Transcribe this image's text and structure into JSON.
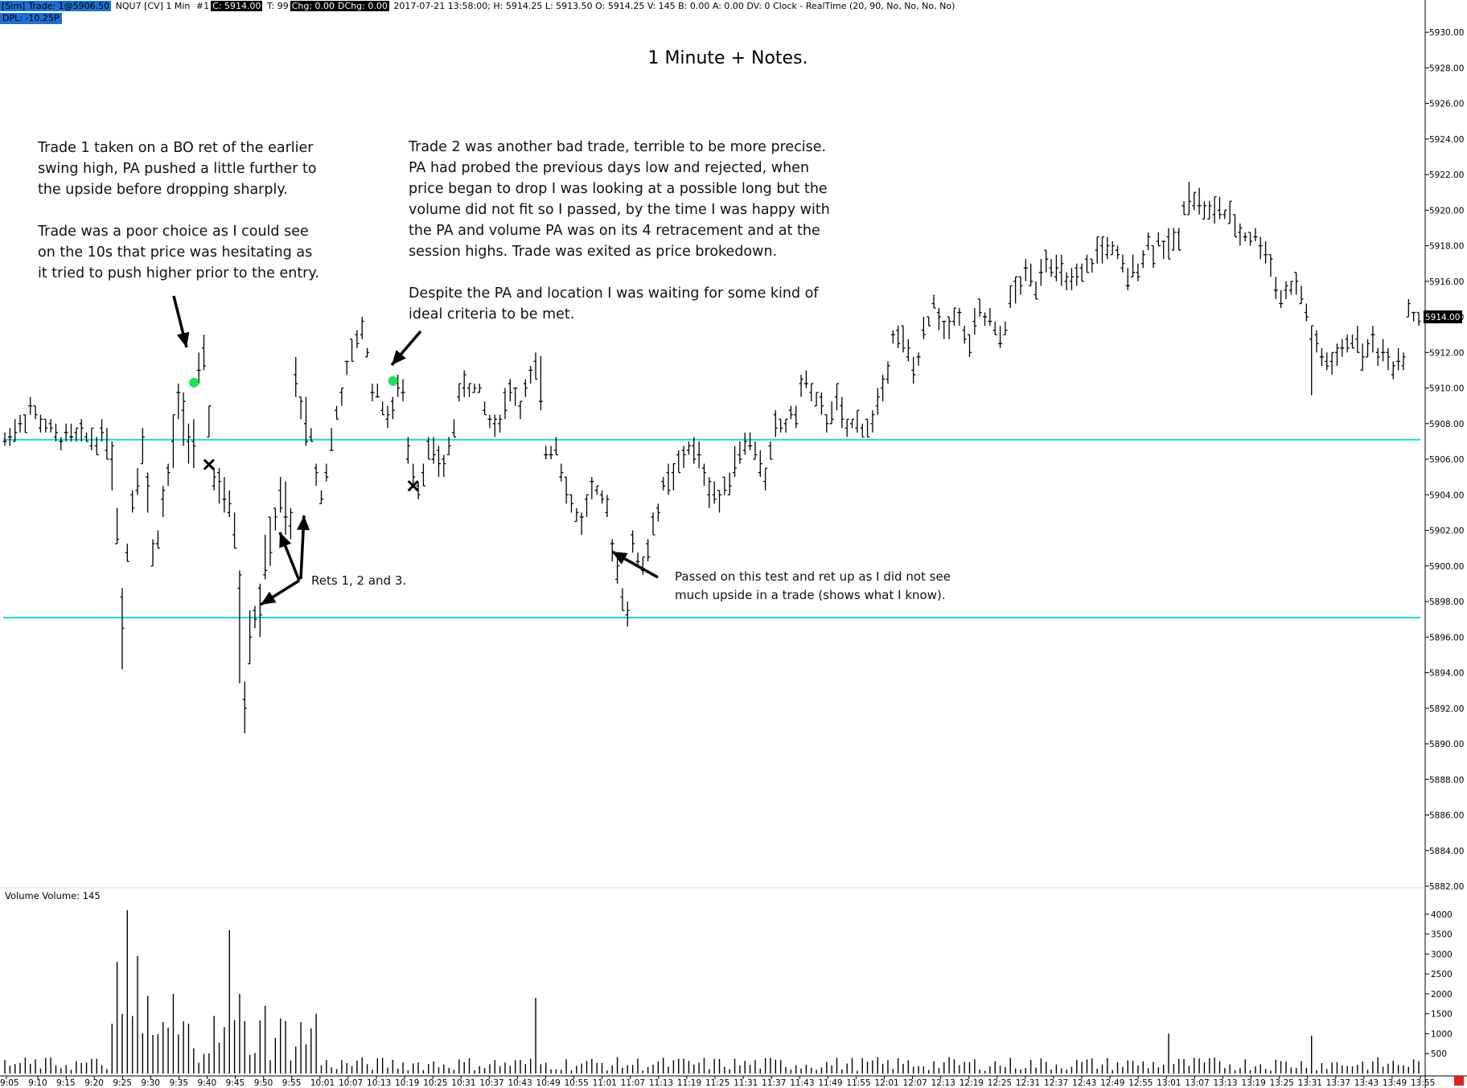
{
  "header": {
    "sim": "[Sim]",
    "trade": "Trade: 1@5906.50",
    "instrument": "NQU7 [CV]  1 Min",
    "num": "#1",
    "close": "C: 5914.00",
    "ticks": "T: 99",
    "chg": "Chg: 0.00",
    "dchg": "DChg: 0.00",
    "bar_info": "2017-07-21 13:58:00; H: 5914.25 L: 5913.50  O: 5914.25 V: 145 B: 0.00 A: 0.00 DV: 0 Clock - RealTime   (20, 90, No, No, No, No)",
    "dpl": "DPL: -10.25P"
  },
  "notes": {
    "trade1": "Trade 1 taken on a BO ret of the earlier\nswing high, PA pushed a little further to\nthe upside before dropping sharply.\n\nTrade was a poor choice as I could see\non the 10s that price was hesitating as\nit tried to push higher prior to the entry.",
    "trade2": "Trade 2 was another bad trade, terrible to be more precise.\nPA had probed the previous days low and rejected, when\nprice began to drop I was looking at a possible long but the\nvolume did not fit so I passed, by the time I was happy with\nthe PA and volume PA was on its 4 retracement and at the\nsession highs.  Trade was exited as price brokedown.\n\nDespite the PA and location I was waiting for some kind of\nideal criteria to be met.",
    "rets": "Rets 1, 2 and 3.",
    "passed": "Passed on this test and ret up as I did not see\nmuch upside in a trade (shows what I know)."
  },
  "colors": {
    "level_line": "#22d3e0",
    "entry_dot": "#1fe05a",
    "price_box_bg": "#000000",
    "corner_marker": "#e02020"
  },
  "chart_data": {
    "type": "ohlc",
    "title": "1 Minute + Notes.",
    "price_axis": {
      "range": [
        5882,
        5931
      ],
      "ticks": [
        "5930.00",
        "5928.00",
        "5926.00",
        "5924.00",
        "5922.00",
        "5920.00",
        "5918.00",
        "5916.00",
        "5914.00",
        "5912.00",
        "5910.00",
        "5908.00",
        "5906.00",
        "5904.00",
        "5902.00",
        "5900.00",
        "5898.00",
        "5896.00",
        "5894.00",
        "5892.00",
        "5890.00",
        "5888.00",
        "5886.00",
        "5884.00",
        "5882.00"
      ],
      "last_price_label": "5914.00",
      "last_price": 5914.0
    },
    "volume_panel": {
      "label": "Volume  Volume: 145",
      "ticks": [
        "4000",
        "3500",
        "3000",
        "2500",
        "2000",
        "1500",
        "1000",
        "500"
      ],
      "range": [
        0,
        4300
      ]
    },
    "time_axis": [
      "9:05",
      "9:10",
      "9:15",
      "9:20",
      "9:25",
      "9:30",
      "9:35",
      "9:40",
      "9:45",
      "9:50",
      "9:55",
      "10:01",
      "10:07",
      "10:13",
      "10:19",
      "10:25",
      "10:31",
      "10:37",
      "10:43",
      "10:49",
      "10:55",
      "11:01",
      "11:07",
      "11:13",
      "11:19",
      "11:25",
      "11:31",
      "11:37",
      "11:43",
      "11:49",
      "11:55",
      "12:01",
      "12:07",
      "12:13",
      "12:19",
      "12:25",
      "12:31",
      "12:37",
      "12:43",
      "12:49",
      "12:55",
      "13:01",
      "13:07",
      "13:13",
      "13:19",
      "13:25",
      "13:31",
      "13:37",
      "13:43",
      "13:49",
      "13:55"
    ],
    "levels": [
      5907.1,
      5897.1
    ],
    "entries": [
      {
        "bar": 38,
        "price": 5910.3
      },
      {
        "bar": 77,
        "price": 5910.4
      }
    ],
    "exits": [
      {
        "bar": 40,
        "price": 5905.7
      },
      {
        "bar": 80,
        "price": 5904.5
      }
    ],
    "anchors": [
      [
        0,
        5907.0
      ],
      [
        5,
        5908.8
      ],
      [
        10,
        5907.2
      ],
      [
        20,
        5907.3
      ],
      [
        21,
        5905.8
      ],
      [
        23,
        5898.0
      ],
      [
        25,
        5903.8
      ],
      [
        27,
        5907.0
      ],
      [
        29,
        5900.6
      ],
      [
        32,
        5904.8
      ],
      [
        34,
        5909.0
      ],
      [
        37,
        5907.0
      ],
      [
        38,
        5910.2
      ],
      [
        39,
        5911.2
      ],
      [
        41,
        5905.2
      ],
      [
        43,
        5903.5
      ],
      [
        45,
        5902.2
      ],
      [
        46,
        5898.6
      ],
      [
        47,
        5893.0
      ],
      [
        48,
        5896.4
      ],
      [
        50,
        5898.0
      ],
      [
        52,
        5901.6
      ],
      [
        54,
        5903.5
      ],
      [
        56,
        5902.0
      ],
      [
        57,
        5910.5
      ],
      [
        60,
        5907.0
      ],
      [
        62,
        5904.0
      ],
      [
        64,
        5907.0
      ],
      [
        66,
        5909.8
      ],
      [
        68,
        5911.8
      ],
      [
        70,
        5913.6
      ],
      [
        72,
        5910.2
      ],
      [
        74,
        5909.0
      ],
      [
        76,
        5908.4
      ],
      [
        77,
        5910.2
      ],
      [
        78,
        5909.6
      ],
      [
        79,
        5906.6
      ],
      [
        81,
        5904.6
      ],
      [
        83,
        5906.5
      ],
      [
        86,
        5905.5
      ],
      [
        90,
        5910.5
      ],
      [
        93,
        5909.5
      ],
      [
        96,
        5907.7
      ],
      [
        99,
        5910.0
      ],
      [
        101,
        5909.2
      ],
      [
        104,
        5911.0
      ],
      [
        106,
        5906.5
      ],
      [
        108,
        5907.0
      ],
      [
        111,
        5903.4
      ],
      [
        113,
        5902.4
      ],
      [
        115,
        5904.4
      ],
      [
        118,
        5903.0
      ],
      [
        120,
        5899.8
      ],
      [
        122,
        5897.5
      ],
      [
        123,
        5901.0
      ],
      [
        125,
        5900.0
      ],
      [
        127,
        5902.4
      ],
      [
        129,
        5904.2
      ],
      [
        132,
        5905.4
      ],
      [
        134,
        5906.8
      ],
      [
        136,
        5906.0
      ],
      [
        138,
        5904.5
      ],
      [
        140,
        5903.6
      ],
      [
        143,
        5906.0
      ],
      [
        145,
        5907.2
      ],
      [
        147,
        5906.5
      ],
      [
        149,
        5905.0
      ],
      [
        151,
        5907.8
      ],
      [
        153,
        5908.0
      ],
      [
        155,
        5908.8
      ],
      [
        157,
        5910.6
      ],
      [
        159,
        5909.0
      ],
      [
        161,
        5908.2
      ],
      [
        163,
        5909.4
      ],
      [
        165,
        5907.4
      ],
      [
        167,
        5908.2
      ],
      [
        169,
        5907.6
      ],
      [
        172,
        5909.8
      ],
      [
        174,
        5913.2
      ],
      [
        176,
        5912.6
      ],
      [
        178,
        5911.0
      ],
      [
        180,
        5912.8
      ],
      [
        182,
        5914.6
      ],
      [
        184,
        5913.0
      ],
      [
        186,
        5914.4
      ],
      [
        189,
        5912.3
      ],
      [
        191,
        5914.2
      ],
      [
        193,
        5913.6
      ],
      [
        195,
        5912.6
      ],
      [
        197,
        5914.8
      ],
      [
        200,
        5916.4
      ],
      [
        202,
        5916.0
      ],
      [
        204,
        5917.6
      ],
      [
        206,
        5916.5
      ],
      [
        208,
        5916.0
      ],
      [
        210,
        5915.8
      ],
      [
        212,
        5916.6
      ],
      [
        214,
        5917.6
      ],
      [
        216,
        5918.0
      ],
      [
        218,
        5917.2
      ],
      [
        220,
        5916.0
      ],
      [
        222,
        5917.2
      ],
      [
        224,
        5917.9
      ],
      [
        226,
        5918.2
      ],
      [
        228,
        5917.8
      ],
      [
        230,
        5918.6
      ],
      [
        232,
        5921.0
      ],
      [
        234,
        5920.4
      ],
      [
        236,
        5919.7
      ],
      [
        238,
        5920.1
      ],
      [
        240,
        5919.3
      ],
      [
        242,
        5918.8
      ],
      [
        244,
        5918.5
      ],
      [
        246,
        5918.3
      ],
      [
        248,
        5917.0
      ],
      [
        250,
        5915.0
      ],
      [
        252,
        5915.8
      ],
      [
        254,
        5915.2
      ],
      [
        256,
        5913.0
      ],
      [
        258,
        5911.6
      ],
      [
        260,
        5911.3
      ],
      [
        262,
        5912.0
      ],
      [
        264,
        5913.0
      ],
      [
        266,
        5912.0
      ],
      [
        268,
        5912.4
      ],
      [
        270,
        5912.0
      ],
      [
        272,
        5911.5
      ],
      [
        274,
        5912.0
      ],
      [
        275,
        5914.3
      ],
      [
        277,
        5914.0
      ]
    ],
    "bar_count": 278,
    "bar_volume_mean": 230,
    "bar_volume_peaks": [
      {
        "bar": 22,
        "value": 2800
      },
      {
        "bar": 24,
        "value": 4100
      },
      {
        "bar": 26,
        "value": 2950
      },
      {
        "bar": 28,
        "value": 1950
      },
      {
        "bar": 33,
        "value": 2000
      },
      {
        "bar": 44,
        "value": 3600
      },
      {
        "bar": 46,
        "value": 2000
      },
      {
        "bar": 51,
        "value": 1700
      },
      {
        "bar": 61,
        "value": 1500
      },
      {
        "bar": 104,
        "value": 1900
      },
      {
        "bar": 228,
        "value": 1000
      },
      {
        "bar": 256,
        "value": 950
      }
    ]
  }
}
